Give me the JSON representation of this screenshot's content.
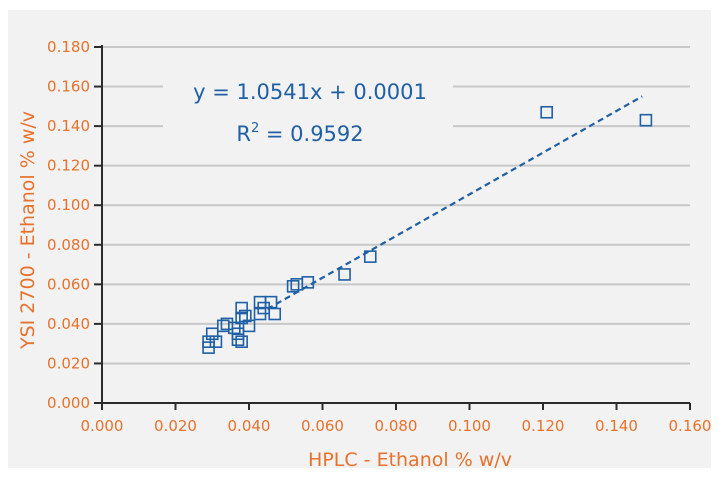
{
  "colors": {
    "background": "#f2f2f2",
    "axis_text": "#e8712b",
    "series": "#1f5fa6",
    "grid": "#c8c8c8",
    "axis_line": "#2b2b2b"
  },
  "chart_data": {
    "type": "scatter",
    "title": "",
    "xlabel": "HPLC - Ethanol % w/v",
    "ylabel": "YSI 2700 - Ethanol % w/v",
    "xlim": [
      0,
      0.16
    ],
    "ylim": [
      0,
      0.18
    ],
    "x_ticks": [
      "0.000",
      "0.020",
      "0.040",
      "0.060",
      "0.080",
      "0.100",
      "0.120",
      "0.140",
      "0.160"
    ],
    "y_ticks": [
      "0.000",
      "0.020",
      "0.040",
      "0.060",
      "0.080",
      "0.100",
      "0.120",
      "0.140",
      "0.160",
      "0.180"
    ],
    "grid": "horizontal",
    "marker": "open-square",
    "points": [
      [
        0.029,
        0.028
      ],
      [
        0.029,
        0.031
      ],
      [
        0.03,
        0.035
      ],
      [
        0.031,
        0.031
      ],
      [
        0.033,
        0.039
      ],
      [
        0.034,
        0.04
      ],
      [
        0.036,
        0.038
      ],
      [
        0.037,
        0.035
      ],
      [
        0.037,
        0.032
      ],
      [
        0.038,
        0.031
      ],
      [
        0.038,
        0.048
      ],
      [
        0.038,
        0.043
      ],
      [
        0.039,
        0.044
      ],
      [
        0.04,
        0.039
      ],
      [
        0.043,
        0.051
      ],
      [
        0.043,
        0.045
      ],
      [
        0.044,
        0.048
      ],
      [
        0.046,
        0.051
      ],
      [
        0.047,
        0.045
      ],
      [
        0.052,
        0.059
      ],
      [
        0.053,
        0.06
      ],
      [
        0.056,
        0.061
      ],
      [
        0.066,
        0.065
      ],
      [
        0.073,
        0.074
      ],
      [
        0.121,
        0.147
      ],
      [
        0.148,
        0.143
      ]
    ],
    "trendline": {
      "style": "dashed",
      "slope": 1.0541,
      "intercept": 0.0001,
      "x_start": 0.045,
      "x_end": 0.147
    },
    "annotation": {
      "equation": "y = 1.0541x + 0.0001",
      "r2_prefix": "R",
      "r2_sup": "2",
      "r2_value": " = 0.9592"
    }
  }
}
